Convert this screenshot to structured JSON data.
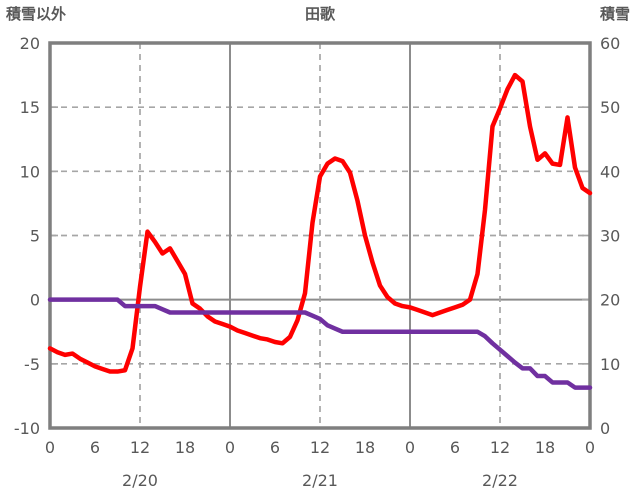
{
  "title": "田歌",
  "colors": {
    "red_line": "#FF0000",
    "purple_line": "#7030A0",
    "frame": "#7f7f7f",
    "gridline": "#a6a6a6",
    "solid_gridline": "#8c8c8c",
    "text": "#595959",
    "background": "#ffffff"
  },
  "chart_data": {
    "type": "line",
    "title": "田歌",
    "left_axis": {
      "label": "積雪以外",
      "min": -10,
      "max": 20,
      "ticks": [
        20,
        15,
        10,
        5,
        0,
        -5,
        -10
      ]
    },
    "right_axis": {
      "label": "積雪",
      "min": 0,
      "max": 60,
      "ticks": [
        60,
        50,
        40,
        30,
        20,
        10,
        0
      ]
    },
    "x_axis": {
      "unit": "hour",
      "range": [
        0,
        72
      ],
      "step_hours": 1,
      "hour_tick_interval": 6,
      "hour_labels": [
        "0",
        "6",
        "12",
        "18",
        "0",
        "6",
        "12",
        "18",
        "0",
        "6",
        "12",
        "18",
        "0"
      ],
      "date_labels": [
        {
          "text": "2/20",
          "hour": 12
        },
        {
          "text": "2/21",
          "hour": 36
        },
        {
          "text": "2/22",
          "hour": 60
        }
      ]
    },
    "grid": {
      "vertical": [
        {
          "hour": 12,
          "style": "dashed"
        },
        {
          "hour": 24,
          "style": "solid"
        },
        {
          "hour": 36,
          "style": "dashed"
        },
        {
          "hour": 48,
          "style": "solid"
        },
        {
          "hour": 60,
          "style": "dashed"
        }
      ],
      "horizontal_left_values": [
        {
          "value": 15,
          "style": "dashed"
        },
        {
          "value": 10,
          "style": "dashed"
        },
        {
          "value": 5,
          "style": "dashed"
        },
        {
          "value": 0,
          "style": "solid"
        },
        {
          "value": -5,
          "style": "dashed"
        }
      ]
    },
    "series": [
      {
        "id": "red-line",
        "name": "積雪以外",
        "axis": "left",
        "color": "#FF0000",
        "values": [
          -3.8,
          -4.1,
          -4.3,
          -4.2,
          -4.6,
          -4.9,
          -5.2,
          -5.4,
          -5.6,
          -5.6,
          -5.5,
          -3.8,
          1.0,
          5.3,
          4.5,
          3.6,
          4.0,
          3.0,
          2.0,
          -0.3,
          -0.7,
          -1.3,
          -1.7,
          -1.9,
          -2.1,
          -2.4,
          -2.6,
          -2.8,
          -3.0,
          -3.1,
          -3.3,
          -3.4,
          -2.9,
          -1.6,
          0.5,
          6.0,
          9.6,
          10.6,
          11.0,
          10.8,
          9.9,
          7.7,
          5.0,
          2.9,
          1.1,
          0.2,
          -0.3,
          -0.5,
          -0.6,
          -0.8,
          -1.0,
          -1.2,
          -1.0,
          -0.8,
          -0.6,
          -0.4,
          0.0,
          2.0,
          7.0,
          13.5,
          14.9,
          16.4,
          17.5,
          17.0,
          13.5,
          10.9,
          11.4,
          10.6,
          10.5,
          14.2,
          10.3,
          8.7,
          8.3
        ]
      },
      {
        "id": "purple-line",
        "name": "積雪",
        "axis": "right",
        "color": "#7030A0",
        "values": [
          20,
          20,
          20,
          20,
          20,
          20,
          20,
          20,
          20,
          20,
          19,
          19,
          19,
          19,
          19,
          18.5,
          18,
          18,
          18,
          18,
          18,
          18,
          18,
          18,
          18,
          18,
          18,
          18,
          18,
          18,
          18,
          18,
          18,
          18,
          18,
          17.5,
          17,
          16,
          15.5,
          15,
          15,
          15,
          15,
          15,
          15,
          15,
          15,
          15,
          15,
          15,
          15,
          15,
          15,
          15,
          15,
          15,
          15,
          15,
          14.3,
          13.2,
          12.2,
          11.2,
          10.2,
          9.3,
          9.3,
          8.1,
          8.1,
          7.1,
          7.1,
          7.1,
          6.3,
          6.3,
          6.3
        ]
      }
    ]
  }
}
